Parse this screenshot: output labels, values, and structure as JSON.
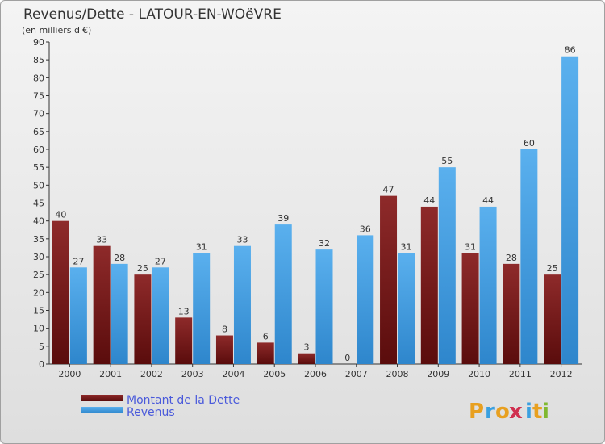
{
  "chart_data": {
    "type": "bar",
    "title": "Revenus/Dette - LATOUR-EN-WOëVRE",
    "subtitle": "(en milliers d'€)",
    "categories": [
      "2000",
      "2001",
      "2002",
      "2003",
      "2004",
      "2005",
      "2006",
      "2007",
      "2008",
      "2009",
      "2010",
      "2011",
      "2012"
    ],
    "series": [
      {
        "name": "Montant de la Dette",
        "color": "#7a1c1c",
        "values": [
          40,
          33,
          25,
          13,
          8,
          6,
          3,
          0,
          47,
          44,
          31,
          28,
          25
        ]
      },
      {
        "name": "Revenus",
        "color": "#4a9fe0",
        "values": [
          27,
          28,
          27,
          31,
          33,
          39,
          32,
          36,
          31,
          55,
          44,
          60,
          86
        ]
      }
    ],
    "ylim": [
      0,
      90
    ],
    "yticks": [
      0,
      5,
      10,
      15,
      20,
      25,
      30,
      35,
      40,
      45,
      50,
      55,
      60,
      65,
      70,
      75,
      80,
      85,
      90
    ],
    "xlabel": "",
    "ylabel": "",
    "grid": false,
    "legend": "bottom-left"
  },
  "logo": {
    "letters": [
      "P",
      "r",
      "o",
      "x",
      "i",
      "t",
      "i"
    ],
    "colors": [
      "#e8a020",
      "#3aa0e0",
      "#e8a020",
      "#d03050",
      "#3aa0e0",
      "#e8a020",
      "#80b830"
    ]
  }
}
